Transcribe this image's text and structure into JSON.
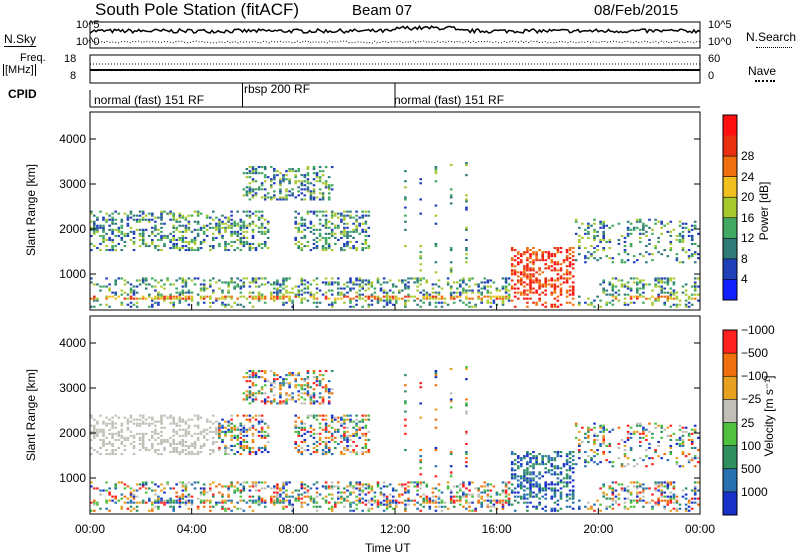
{
  "header": {
    "station": "South Pole Station (fitACF)",
    "beam": "Beam 07",
    "date": "08/Feb/2015"
  },
  "noise_panel": {
    "left_label": "N.Sky",
    "right_label": "N.Search",
    "left_ticks": [
      "10^5",
      "10^0"
    ],
    "right_ticks": [
      "10^5",
      "10^0"
    ]
  },
  "freq_panel": {
    "left_label_line1": "Freq.",
    "left_label_line2": "[MHz]",
    "left_ticks": [
      "18",
      "8"
    ],
    "right_label": "Nave",
    "right_ticks": [
      "60",
      "0"
    ]
  },
  "cpid": {
    "label": "CPID",
    "segments": [
      {
        "text": "normal (fast) 151 RF",
        "start_h": 0,
        "end_h": 6
      },
      {
        "text": "rbsp 200 RF",
        "start_h": 6,
        "end_h": 12
      },
      {
        "text": "normal (fast) 151 RF",
        "start_h": 12,
        "end_h": 24
      }
    ]
  },
  "chart_data": [
    {
      "type": "heatmap",
      "parameter": "power",
      "ylabel": "Slant Range [km]",
      "yticks": [
        1000,
        2000,
        3000,
        4000
      ],
      "ylim": [
        200,
        4600
      ],
      "xlim": [
        0,
        24
      ],
      "colorbar": {
        "label": "Power [dB]",
        "ticks": [
          "4",
          "8",
          "12",
          "16",
          "20",
          "24",
          "28"
        ],
        "colors": [
          "#1020ff",
          "#2040b8",
          "#307a7a",
          "#40a860",
          "#a8c830",
          "#f0c020",
          "#f07010",
          "#e83010",
          "#ff1010"
        ]
      }
    },
    {
      "type": "heatmap",
      "parameter": "velocity",
      "ylabel": "Slant Range [km]",
      "yticks": [
        1000,
        2000,
        3000,
        4000
      ],
      "ylim": [
        200,
        4600
      ],
      "xlim": [
        0,
        24
      ],
      "xlabel": "Time UT",
      "xticks": [
        "00:00",
        "04:00",
        "08:00",
        "12:00",
        "16:00",
        "20:00",
        "00:00"
      ],
      "colorbar": {
        "label": "Velocity [m s⁻¹]",
        "ticks": [
          "1000",
          "500",
          "100",
          "25",
          "−25",
          "−100",
          "−500",
          "−1000"
        ],
        "colors": [
          "#1830c8",
          "#2870b0",
          "#309060",
          "#50c040",
          "#c0c0b8",
          "#e8a020",
          "#f07010",
          "#ff2020"
        ]
      }
    }
  ]
}
